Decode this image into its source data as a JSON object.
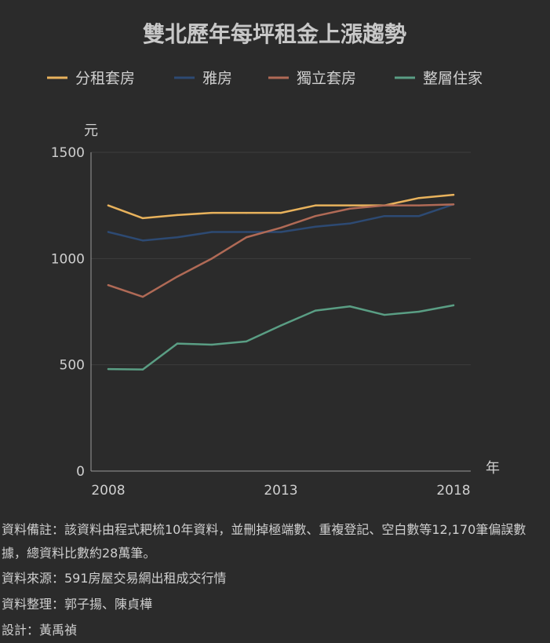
{
  "chart_data": {
    "type": "line",
    "title": "雙北歷年每坪租金上漲趨勢",
    "ylabel": "元",
    "xlabel": "年",
    "x": [
      2008,
      2009,
      2010,
      2011,
      2012,
      2013,
      2014,
      2015,
      2016,
      2017,
      2018
    ],
    "xticks": [
      "2008",
      "2013",
      "2018"
    ],
    "xlim": [
      2007.5,
      2018.5
    ],
    "yticks": [
      "0",
      "500",
      "1000",
      "1500"
    ],
    "ylim": [
      0,
      1500
    ],
    "legend_position": "top",
    "grid": true,
    "series": [
      {
        "name": "分租套房",
        "color": "#e8b25c",
        "values": [
          1250,
          1190,
          1205,
          1215,
          1215,
          1215,
          1250,
          1250,
          1250,
          1285,
          1300
        ]
      },
      {
        "name": "雅房",
        "color": "#2d4a73",
        "values": [
          1125,
          1085,
          1100,
          1125,
          1125,
          1125,
          1150,
          1165,
          1200,
          1200,
          1255
        ]
      },
      {
        "name": "獨立套房",
        "color": "#b06a56",
        "values": [
          875,
          820,
          915,
          1000,
          1100,
          1145,
          1200,
          1235,
          1250,
          1250,
          1255
        ]
      },
      {
        "name": "整層住家",
        "color": "#5a9e84",
        "values": [
          480,
          478,
          600,
          595,
          610,
          685,
          755,
          775,
          735,
          750,
          780
        ]
      }
    ]
  },
  "notes": {
    "line1": "資料備註：該資料由程式耙梳10年資料，並刪掉極端數、重複登記、空白數等12,170筆偏誤數據，總資料比數約28萬筆。",
    "line2": "資料來源：591房屋交易網出租成交行情",
    "line3": "資料整理：郭子揚、陳貞樺",
    "line4": "設計：黃禹禎"
  }
}
